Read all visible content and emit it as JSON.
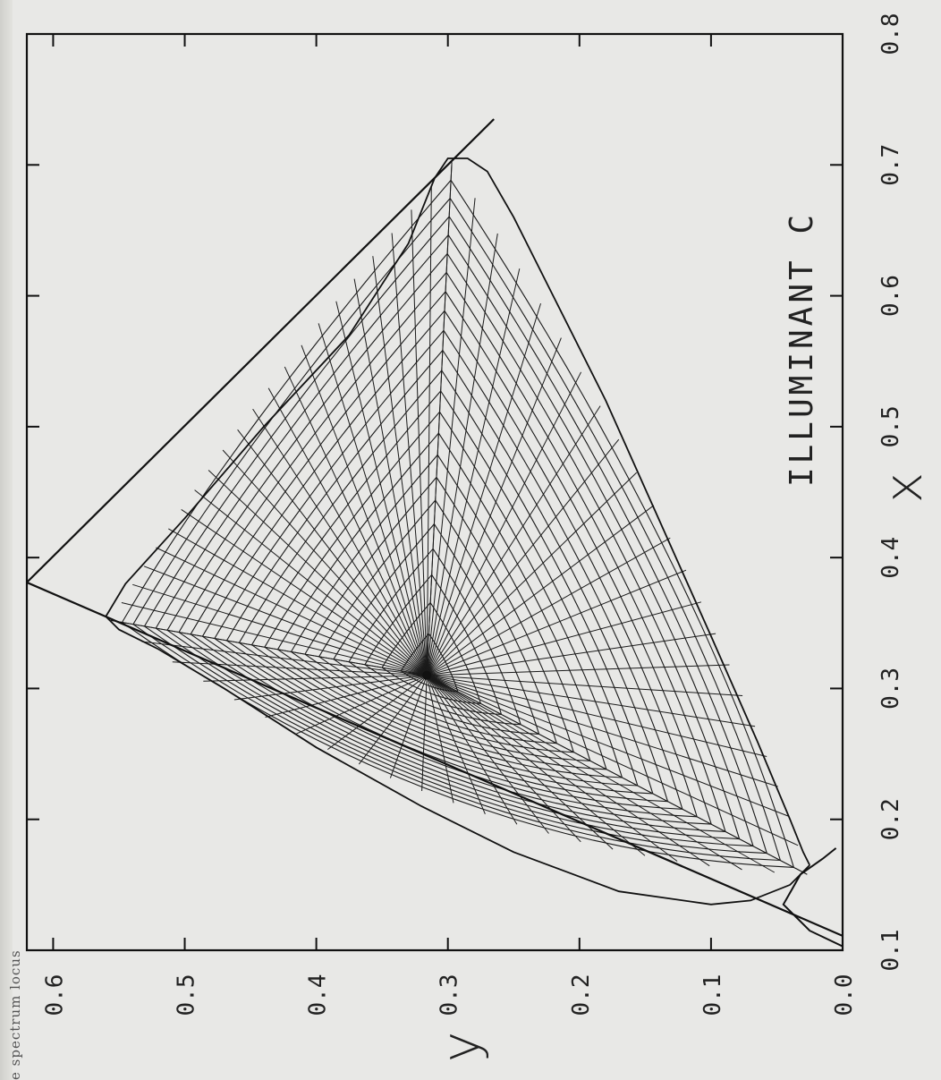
{
  "page_fragment": "e spectrum locus",
  "chart_data": {
    "type": "line",
    "orientation": "rotated-90-clockwise",
    "annotation": "ILLUMINANT C",
    "xlabel": "x",
    "ylabel": "y",
    "xlim": [
      0.1,
      0.8
    ],
    "ylim": [
      0.0,
      0.62
    ],
    "xticks": [
      "0.1",
      "0.2",
      "0.3",
      "0.4",
      "0.5",
      "0.6",
      "0.7",
      "0.8"
    ],
    "yticks": [
      "0.0",
      "0.1",
      "0.2",
      "0.3",
      "0.4",
      "0.5",
      "0.6"
    ],
    "grid": false,
    "white_point": {
      "x": 0.31,
      "y": 0.316
    },
    "triangle_boundary": [
      [
        0.735,
        0.265
      ],
      [
        0.381,
        0.62
      ],
      [
        0.111,
        0.0
      ]
    ],
    "spectrum_locus": [
      [
        0.103,
        0.0
      ],
      [
        0.115,
        0.025
      ],
      [
        0.135,
        0.045
      ],
      [
        0.158,
        0.032
      ],
      [
        0.17,
        0.015
      ],
      [
        0.178,
        0.005
      ]
    ],
    "gamut_outline": [
      [
        0.165,
        0.025
      ],
      [
        0.15,
        0.04
      ],
      [
        0.138,
        0.07
      ],
      [
        0.135,
        0.1
      ],
      [
        0.145,
        0.17
      ],
      [
        0.175,
        0.25
      ],
      [
        0.21,
        0.32
      ],
      [
        0.255,
        0.4
      ],
      [
        0.3,
        0.47
      ],
      [
        0.33,
        0.52
      ],
      [
        0.345,
        0.55
      ],
      [
        0.355,
        0.56
      ],
      [
        0.38,
        0.545
      ],
      [
        0.43,
        0.5
      ],
      [
        0.5,
        0.44
      ],
      [
        0.57,
        0.375
      ],
      [
        0.64,
        0.33
      ],
      [
        0.69,
        0.31
      ],
      [
        0.705,
        0.3
      ],
      [
        0.705,
        0.285
      ],
      [
        0.695,
        0.27
      ],
      [
        0.66,
        0.25
      ],
      [
        0.6,
        0.22
      ],
      [
        0.52,
        0.18
      ],
      [
        0.43,
        0.14
      ],
      [
        0.34,
        0.1
      ],
      [
        0.26,
        0.065
      ],
      [
        0.2,
        0.04
      ],
      [
        0.175,
        0.03
      ],
      [
        0.165,
        0.025
      ]
    ],
    "grid_families": {
      "loci_toward_red": 22,
      "loci_toward_green": 22,
      "loci_toward_blue": 22,
      "interpolation_steps": 24
    }
  }
}
